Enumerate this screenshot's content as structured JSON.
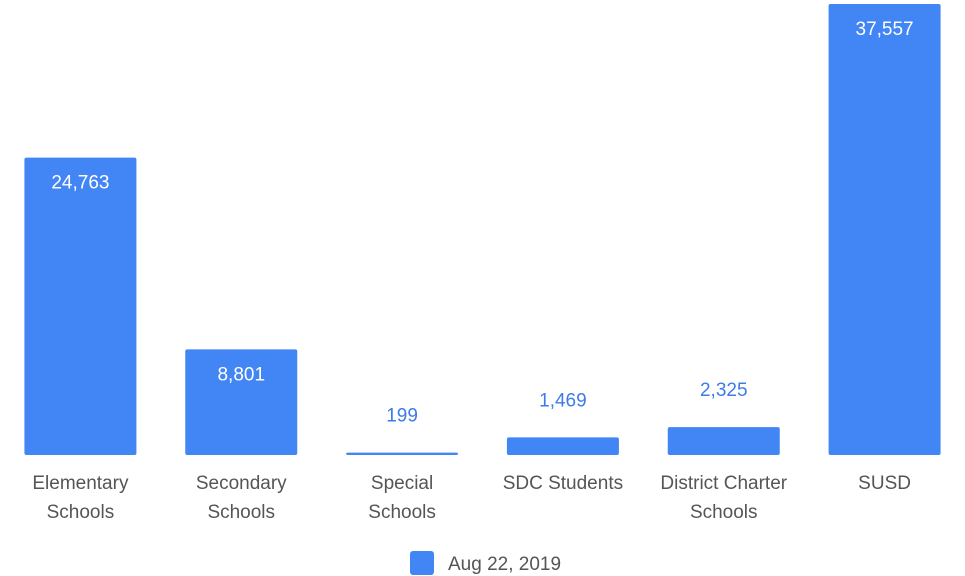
{
  "chart_data": {
    "type": "bar",
    "categories": [
      [
        "Elementary",
        "Schools"
      ],
      [
        "Secondary",
        "Schools"
      ],
      [
        "Special",
        "Schools"
      ],
      [
        "SDC Students"
      ],
      [
        "District Charter",
        "Schools"
      ],
      [
        "SUSD"
      ]
    ],
    "series": [
      {
        "name": "Aug 22, 2019",
        "color": "#4285f4",
        "values": [
          24763,
          8801,
          199,
          1469,
          2325,
          37557
        ],
        "labels": [
          "24,763",
          "8,801",
          "199",
          "1,469",
          "2,325",
          "37,557"
        ]
      }
    ],
    "ylim": [
      0,
      39000
    ],
    "grid": false,
    "legend": "bottom"
  }
}
